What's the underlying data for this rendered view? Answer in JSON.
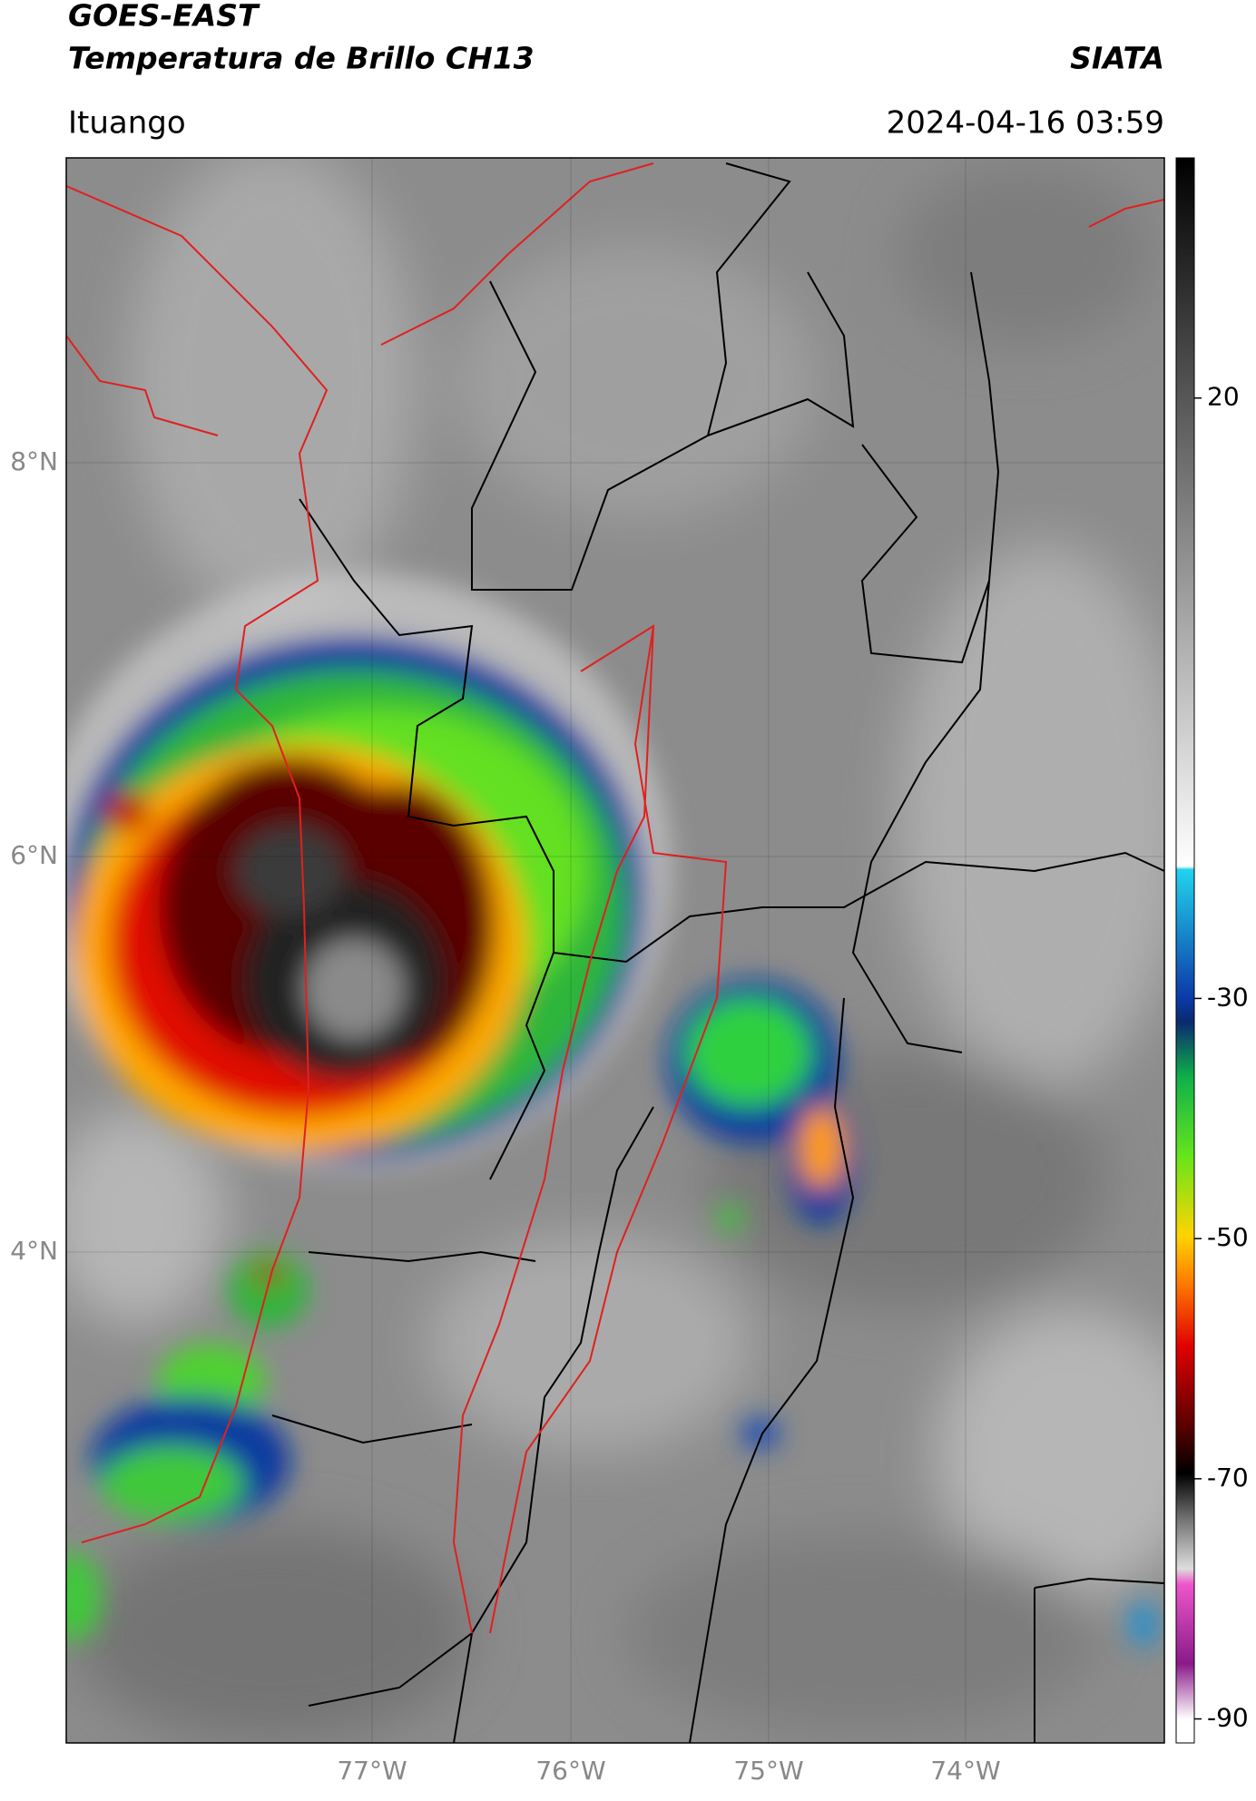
{
  "header": {
    "title": "GOES-EAST",
    "subtitle": "Temperatura de Brillo CH13",
    "source": "SIATA",
    "location": "Ituango",
    "datetime": "2024-04-16 03:59"
  },
  "map": {
    "lat_labels": [
      "8°N",
      "6°N",
      "4°N"
    ],
    "lon_labels": [
      "77°W",
      "76°W",
      "75°W",
      "74°W"
    ]
  },
  "colorbar": {
    "limits": [
      -92,
      40
    ],
    "ticks": [
      20,
      -30,
      -50,
      -70,
      -90
    ]
  }
}
